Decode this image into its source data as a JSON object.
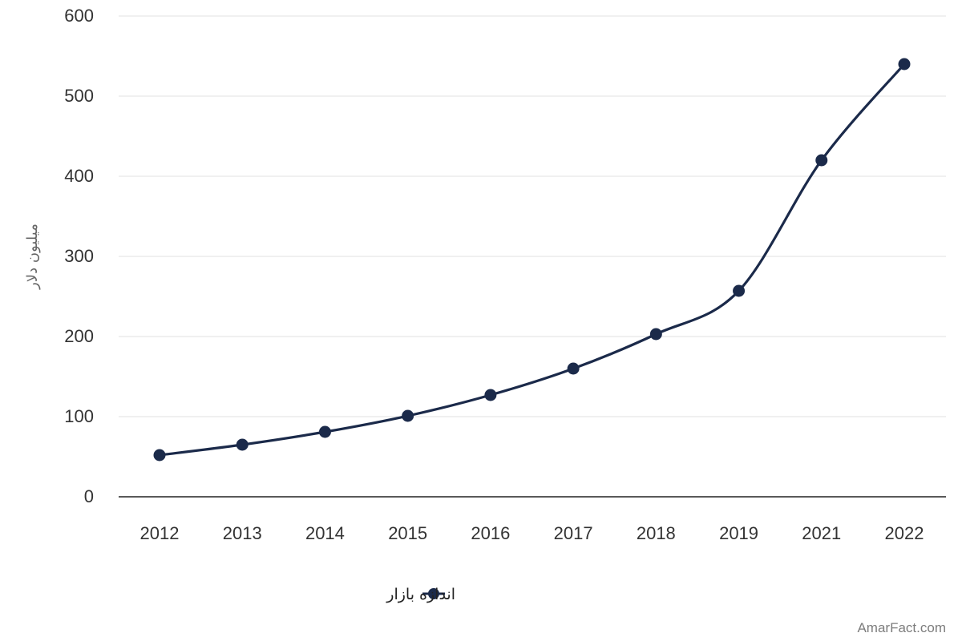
{
  "chart_data": {
    "type": "line",
    "categories": [
      "2012",
      "2013",
      "2014",
      "2015",
      "2016",
      "2017",
      "2018",
      "2019",
      "2021",
      "2022"
    ],
    "series": [
      {
        "name": "اندازه بازار",
        "values": [
          52,
          65,
          81,
          101,
          127,
          160,
          203,
          257,
          420,
          540
        ],
        "color": "#1b2a4a"
      }
    ],
    "ylabel": "میلیون دلار",
    "ylim": [
      0,
      600
    ],
    "yticks": [
      0,
      100,
      200,
      300,
      400,
      500,
      600
    ],
    "grid": true,
    "legend_position": "bottom-center"
  },
  "legend": {
    "label": "اندازه بازار"
  },
  "watermark": "AmarFact.com"
}
